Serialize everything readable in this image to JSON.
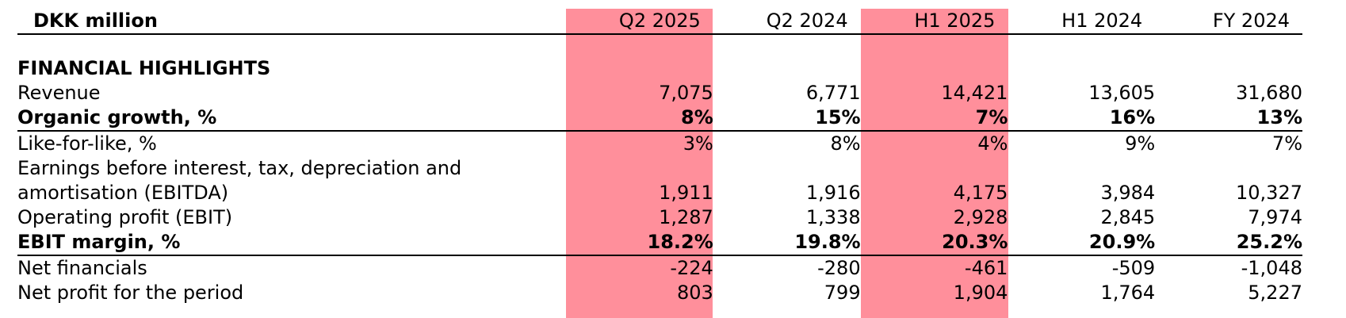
{
  "colors": {
    "highlight": "#ff8f9b",
    "text": "#000000",
    "rule": "#000000"
  },
  "header": {
    "label": "DKK million",
    "columns": [
      "Q2 2025",
      "Q2 2024",
      "H1 2025",
      "H1 2024",
      "FY 2024"
    ]
  },
  "highlighted_columns": [
    "Q2 2025",
    "H1 2025"
  ],
  "section": {
    "title": "FINANCIAL HIGHLIGHTS"
  },
  "rows": [
    {
      "label": "Revenue",
      "values": [
        "7,075",
        "6,771",
        "14,421",
        "13,605",
        "31,680"
      ]
    },
    {
      "label": "Organic growth, %",
      "values": [
        "8%",
        "15%",
        "7%",
        "16%",
        "13%"
      ]
    },
    {
      "label": "Like-for-like, %",
      "values": [
        "3%",
        "8%",
        "4%",
        "9%",
        "7%"
      ]
    },
    {
      "label_line1": "Earnings before interest, tax, depreciation and",
      "label_line2": "amortisation (EBITDA)",
      "values": [
        "1,911",
        "1,916",
        "4,175",
        "3,984",
        "10,327"
      ]
    },
    {
      "label": "Operating profit (EBIT)",
      "values": [
        "1,287",
        "1,338",
        "2,928",
        "2,845",
        "7,974"
      ]
    },
    {
      "label": "EBIT margin, %",
      "values": [
        "18.2%",
        "19.8%",
        "20.3%",
        "20.9%",
        "25.2%"
      ]
    },
    {
      "label": "Net financials",
      "values": [
        "-224",
        "-280",
        "-461",
        "-509",
        "-1,048"
      ]
    },
    {
      "label": "Net profit for the period",
      "values": [
        "803",
        "799",
        "1,904",
        "1,764",
        "5,227"
      ]
    }
  ]
}
